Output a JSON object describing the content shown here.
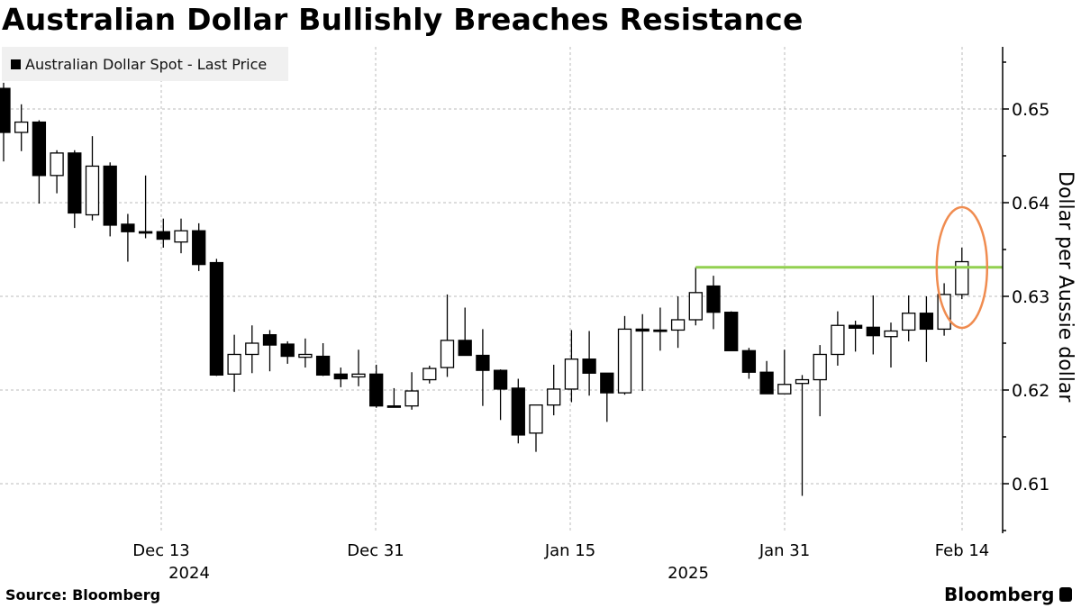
{
  "title": "Australian Dollar Bullishly Breaches Resistance",
  "legend": {
    "label": "Australian Dollar Spot - Last Price"
  },
  "source": "Source: Bloomberg",
  "logo": "Bloomberg",
  "colors": {
    "resistance_line": "#92d050",
    "highlight_ellipse": "#f08c50",
    "up_candle_fill": "#ffffff",
    "down_candle_fill": "#000000"
  },
  "chart_data": {
    "type": "candlestick",
    "title": "Australian Dollar Bullishly Breaches Resistance",
    "xlabel": "",
    "ylabel": "Dollar per Aussie dollar",
    "ylim": [
      0.6045,
      0.6565
    ],
    "y_ticks": [
      0.61,
      0.62,
      0.63,
      0.64,
      0.65
    ],
    "y_tick_labels": [
      "0.61",
      "0.62",
      "0.63",
      "0.64",
      "0.65"
    ],
    "x_ticks": [
      {
        "label": "Dec 13",
        "year": "2024",
        "index": 9
      },
      {
        "label": "Dec 31",
        "index": 21
      },
      {
        "label": "Jan 15",
        "year": "2025",
        "index": 32
      },
      {
        "label": "Jan 31",
        "index": 44
      },
      {
        "label": "Feb 14",
        "index": 54
      }
    ],
    "grid": true,
    "legend_position": "top-left",
    "series": [
      {
        "name": "Australian Dollar Spot - Last Price",
        "ohlc": [
          [
            0.6522,
            0.6528,
            0.6444,
            0.6475
          ],
          [
            0.6475,
            0.6505,
            0.6455,
            0.6486
          ],
          [
            0.6486,
            0.6488,
            0.6399,
            0.6429
          ],
          [
            0.6429,
            0.6456,
            0.641,
            0.6453
          ],
          [
            0.6453,
            0.6456,
            0.6373,
            0.6389
          ],
          [
            0.6387,
            0.6471,
            0.6381,
            0.6439
          ],
          [
            0.6439,
            0.6443,
            0.6364,
            0.6376
          ],
          [
            0.6377,
            0.6388,
            0.6337,
            0.6369
          ],
          [
            0.6369,
            0.6429,
            0.6362,
            0.6369
          ],
          [
            0.6369,
            0.6383,
            0.6352,
            0.6361
          ],
          [
            0.6358,
            0.6383,
            0.6346,
            0.637
          ],
          [
            0.637,
            0.6378,
            0.6327,
            0.6334
          ],
          [
            0.6336,
            0.634,
            0.6215,
            0.6216
          ],
          [
            0.6217,
            0.6259,
            0.6198,
            0.6238
          ],
          [
            0.6238,
            0.6269,
            0.6218,
            0.625
          ],
          [
            0.6259,
            0.6264,
            0.622,
            0.6248
          ],
          [
            0.6249,
            0.6252,
            0.6228,
            0.6236
          ],
          [
            0.6235,
            0.6255,
            0.6224,
            0.6238
          ],
          [
            0.6236,
            0.625,
            0.6215,
            0.6216
          ],
          [
            0.6217,
            0.6224,
            0.6203,
            0.6212
          ],
          [
            0.6214,
            0.6243,
            0.6204,
            0.6217
          ],
          [
            0.6217,
            0.6227,
            0.6181,
            0.6183
          ],
          [
            0.6183,
            0.6202,
            0.6183,
            0.6183
          ],
          [
            0.6183,
            0.6219,
            0.6179,
            0.6199
          ],
          [
            0.6211,
            0.6226,
            0.6207,
            0.6223
          ],
          [
            0.6224,
            0.6302,
            0.6214,
            0.6253
          ],
          [
            0.6253,
            0.6288,
            0.624,
            0.6237
          ],
          [
            0.6237,
            0.6265,
            0.6183,
            0.6221
          ],
          [
            0.6221,
            0.6222,
            0.6168,
            0.6201
          ],
          [
            0.6202,
            0.6212,
            0.6143,
            0.6152
          ],
          [
            0.6154,
            0.6176,
            0.6134,
            0.6184
          ],
          [
            0.6184,
            0.6227,
            0.6173,
            0.6201
          ],
          [
            0.6201,
            0.6264,
            0.6187,
            0.6233
          ],
          [
            0.6233,
            0.6263,
            0.6194,
            0.6218
          ],
          [
            0.6218,
            0.6212,
            0.6166,
            0.6197
          ],
          [
            0.6197,
            0.6279,
            0.6195,
            0.6265
          ],
          [
            0.6265,
            0.6281,
            0.6199,
            0.6263
          ],
          [
            0.6264,
            0.6288,
            0.6242,
            0.6264
          ],
          [
            0.6264,
            0.63,
            0.6245,
            0.6275
          ],
          [
            0.6275,
            0.6331,
            0.6269,
            0.6304
          ],
          [
            0.6311,
            0.6322,
            0.6265,
            0.6283
          ],
          [
            0.6283,
            0.6284,
            0.6243,
            0.6242
          ],
          [
            0.6242,
            0.6245,
            0.6212,
            0.6219
          ],
          [
            0.6219,
            0.6231,
            0.6203,
            0.6196
          ],
          [
            0.6196,
            0.6243,
            0.6199,
            0.6206
          ],
          [
            0.6207,
            0.6216,
            0.6087,
            0.6211
          ],
          [
            0.6211,
            0.6248,
            0.6172,
            0.6238
          ],
          [
            0.6238,
            0.6284,
            0.6226,
            0.6269
          ],
          [
            0.6269,
            0.6274,
            0.6241,
            0.6266
          ],
          [
            0.6267,
            0.6301,
            0.6238,
            0.6258
          ],
          [
            0.6257,
            0.6272,
            0.6224,
            0.6263
          ],
          [
            0.6264,
            0.6301,
            0.6252,
            0.6282
          ],
          [
            0.6282,
            0.63,
            0.623,
            0.6265
          ],
          [
            0.6265,
            0.6314,
            0.6258,
            0.6302
          ],
          [
            0.6302,
            0.6352,
            0.6297,
            0.6337
          ]
        ]
      }
    ],
    "annotations": [
      {
        "type": "horizontal_line",
        "label": "resistance",
        "value": 0.6331,
        "color": "#92d050",
        "from_index": 39
      },
      {
        "type": "ellipse",
        "around_index": 54,
        "color": "#f08c50"
      }
    ]
  }
}
